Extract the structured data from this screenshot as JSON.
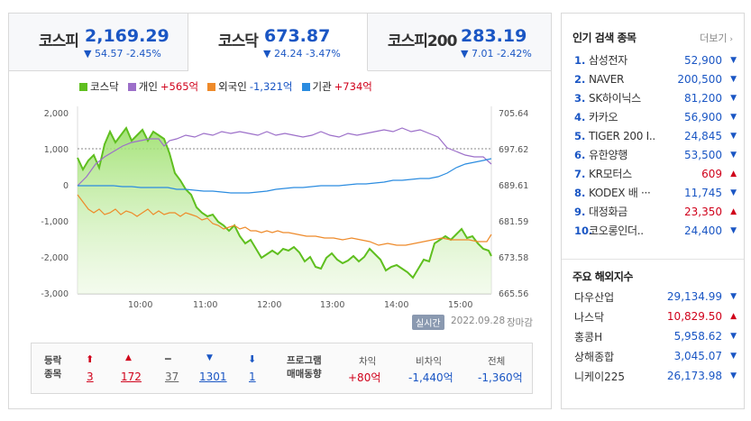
{
  "tabs": [
    {
      "name": "코스피",
      "value": "2,169.29",
      "change": "▼ 54.57 -2.45%"
    },
    {
      "name": "코스닥",
      "value": "673.87",
      "change": "▼ 24.24 -3.47%"
    },
    {
      "name": "코스피200",
      "value": "283.19",
      "change": "▼ 7.01 -2.42%"
    }
  ],
  "legend": {
    "kosdaq": "코스닥",
    "individual": "개인",
    "individual_val": "+565억",
    "foreign": "외국인",
    "foreign_val": "-1,321억",
    "institution": "기관",
    "institution_val": "+734억"
  },
  "chart_data": {
    "type": "line",
    "y_left_ticks": [
      "2,000",
      "1,000",
      "0",
      "-1,000",
      "-2,000",
      "-3,000"
    ],
    "y_right_ticks": [
      "705.64",
      "697.62",
      "689.61",
      "681.59",
      "673.58",
      "665.56"
    ],
    "x_ticks": [
      "10:00",
      "11:00",
      "12:00",
      "13:00",
      "14:00",
      "15:00"
    ],
    "reference_line": 697.62
  },
  "status": {
    "realtime": "실시간",
    "date": "2022.09.28",
    "market": "장마감"
  },
  "breadth": {
    "label_line1": "등락",
    "label_line2": "종목",
    "items": [
      {
        "arrow": "⬆",
        "count": "3",
        "cls": "up"
      },
      {
        "arrow": "▲",
        "count": "172",
        "cls": "up"
      },
      {
        "arrow": "━",
        "count": "37",
        "cls": "flat"
      },
      {
        "arrow": "▼",
        "count": "1301",
        "cls": "dn"
      },
      {
        "arrow": "⬇",
        "count": "1",
        "cls": "dn"
      }
    ]
  },
  "program": {
    "label_line1": "프로그램",
    "label_line2": "매매동향",
    "cols": [
      {
        "head": "차익",
        "value": "+80억"
      },
      {
        "head": "비차익",
        "value": "-1,440억"
      },
      {
        "head": "전체",
        "value": "-1,360억"
      }
    ]
  },
  "popular": {
    "title": "인기 검색 종목",
    "more": "더보기",
    "items": [
      {
        "no": "1.",
        "name": "삼성전자",
        "price": "52,900",
        "dir": "▼"
      },
      {
        "no": "2.",
        "name": "NAVER",
        "price": "200,500",
        "dir": "▼"
      },
      {
        "no": "3.",
        "name": "SK하이닉스",
        "price": "81,200",
        "dir": "▼"
      },
      {
        "no": "4.",
        "name": "카카오",
        "price": "56,900",
        "dir": "▼"
      },
      {
        "no": "5.",
        "name": "TIGER 200 I..",
        "price": "24,845",
        "dir": "▼"
      },
      {
        "no": "6.",
        "name": "유한양행",
        "price": "53,500",
        "dir": "▼"
      },
      {
        "no": "7.",
        "name": "KR모터스",
        "price": "609",
        "dir": "▲"
      },
      {
        "no": "8.",
        "name": "KODEX 배 ···",
        "price": "11,745",
        "dir": "▼"
      },
      {
        "no": "9.",
        "name": "대정화금",
        "price": "23,350",
        "dir": "▲"
      },
      {
        "no": "10.",
        "name": "코오롱인더..",
        "price": "24,400",
        "dir": "▼"
      }
    ]
  },
  "overseas": {
    "title": "주요 해외지수",
    "items": [
      {
        "name": "다우산업",
        "price": "29,134.99",
        "dir": "▼"
      },
      {
        "name": "나스닥",
        "price": "10,829.50",
        "dir": "▲"
      },
      {
        "name": "홍콩H",
        "price": "5,958.62",
        "dir": "▼"
      },
      {
        "name": "상해종합",
        "price": "3,045.07",
        "dir": "▼"
      },
      {
        "name": "니케이225",
        "price": "26,173.98",
        "dir": "▼"
      }
    ]
  },
  "colors": {
    "kosdaq": "#5fbf1f",
    "individual": "#9c6fc9",
    "foreign": "#ee8a2a",
    "institution": "#2b8ce0",
    "up": "#d0021b",
    "down": "#1a56c4"
  }
}
